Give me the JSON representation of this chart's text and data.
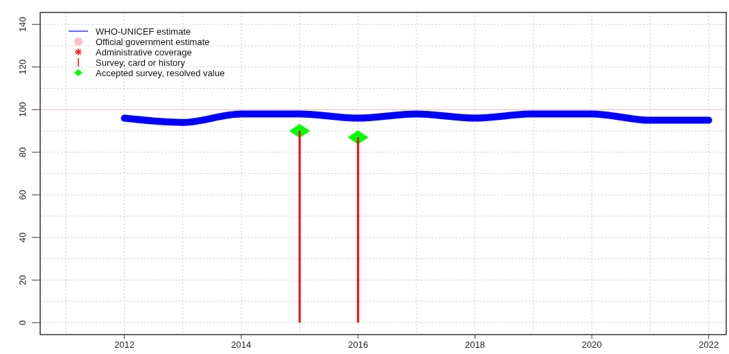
{
  "chart_data": {
    "type": "line",
    "x": [
      2012,
      2013,
      2014,
      2015,
      2016,
      2017,
      2018,
      2019,
      2020,
      2021,
      2022
    ],
    "series": [
      {
        "name": "WHO-UNICEF estimate",
        "color": "#0000ff",
        "values": [
          96,
          94,
          98,
          98,
          96,
          98,
          96,
          98,
          98,
          95,
          95
        ]
      },
      {
        "name": "Official government estimate",
        "type": "scatter",
        "marker": "circle",
        "color": "#ffc0cb",
        "values": [
          null,
          null,
          null,
          null,
          null,
          null,
          null,
          null,
          null,
          null,
          null
        ]
      },
      {
        "name": "Administrative coverage",
        "type": "scatter",
        "marker": "star",
        "color": "#ff0000",
        "values": [
          null,
          null,
          null,
          null,
          null,
          null,
          null,
          null,
          null,
          null,
          null
        ]
      },
      {
        "name": "Survey, card or history",
        "type": "bar",
        "color": "#ff0000",
        "values": [
          null,
          null,
          null,
          90,
          87,
          null,
          null,
          null,
          null,
          null,
          null
        ]
      },
      {
        "name": "Accepted survey, resolved value",
        "type": "scatter",
        "marker": "diamond",
        "color": "#00ff00",
        "values": [
          null,
          null,
          null,
          90,
          87,
          null,
          null,
          null,
          null,
          null,
          null
        ]
      }
    ],
    "xlim": [
      2010.56,
      2022.3
    ],
    "xticks": [
      {
        "value": 2011,
        "label": null
      },
      2012,
      {
        "value": 2013,
        "label": null
      },
      2014,
      {
        "value": 2015,
        "label": null
      },
      2016,
      {
        "value": 2017,
        "label": null
      },
      2018,
      {
        "value": 2019,
        "label": null
      },
      2020,
      {
        "value": 2021,
        "label": null
      },
      2022
    ],
    "ylim": [
      -5.6,
      145.6
    ],
    "yticks": [
      0,
      {
        "value": 10,
        "label": null
      },
      20,
      {
        "value": 30,
        "label": null
      },
      40,
      {
        "value": 50,
        "label": null
      },
      60,
      {
        "value": 70,
        "label": null
      },
      80,
      {
        "value": 90,
        "label": null
      },
      100,
      {
        "value": 110,
        "label": null
      },
      120,
      {
        "value": 130,
        "label": null
      },
      140
    ],
    "ref_lines": [
      {
        "axis": "y",
        "value": 100,
        "label": null,
        "color": "#ffc0cb"
      }
    ],
    "grid": true,
    "legend": "top left"
  }
}
